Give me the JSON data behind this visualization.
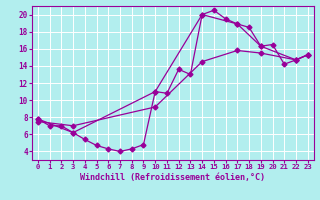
{
  "xlabel": "Windchill (Refroidissement éolien,°C)",
  "background_color": "#b2eeee",
  "grid_color": "#ffffff",
  "line_color": "#990099",
  "marker": "D",
  "markersize": 2.5,
  "linewidth": 0.9,
  "xlim": [
    -0.5,
    23.5
  ],
  "ylim": [
    3,
    21
  ],
  "yticks": [
    4,
    6,
    8,
    10,
    12,
    14,
    16,
    18,
    20
  ],
  "xticks": [
    0,
    1,
    2,
    3,
    4,
    5,
    6,
    7,
    8,
    9,
    10,
    11,
    12,
    13,
    14,
    15,
    16,
    17,
    18,
    19,
    20,
    21,
    22,
    23
  ],
  "series": [
    {
      "x": [
        0,
        1,
        2,
        3,
        4,
        5,
        6,
        7,
        8,
        9,
        10,
        11,
        12,
        13,
        14,
        15,
        16,
        17,
        18,
        19,
        20,
        21,
        22,
        23
      ],
      "y": [
        7.8,
        7.0,
        7.0,
        6.2,
        5.4,
        4.7,
        4.3,
        4.0,
        4.3,
        4.8,
        11.0,
        10.8,
        13.6,
        13.0,
        20.0,
        20.5,
        19.5,
        18.9,
        18.5,
        16.3,
        16.5,
        14.2,
        14.7,
        15.3
      ]
    },
    {
      "x": [
        0,
        3,
        10,
        14,
        17,
        19,
        22,
        23
      ],
      "y": [
        7.8,
        6.2,
        11.0,
        20.0,
        18.9,
        16.3,
        14.7,
        15.3
      ]
    },
    {
      "x": [
        0,
        3,
        10,
        14,
        17,
        19,
        22,
        23
      ],
      "y": [
        7.5,
        7.0,
        9.2,
        14.5,
        15.8,
        15.5,
        14.7,
        15.3
      ]
    }
  ]
}
